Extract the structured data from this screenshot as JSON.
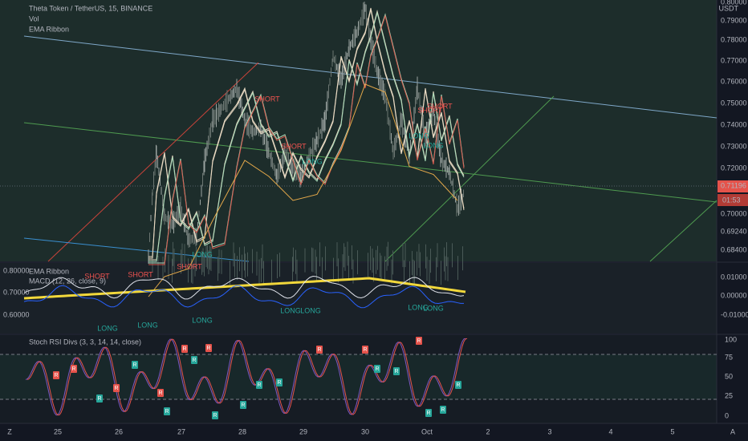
{
  "header": {
    "symbol": "Theta Token / TetherUS, 15, BINANCE",
    "indicators": [
      "Vol",
      "EMA Ribbon"
    ]
  },
  "price_axis": {
    "labels": [
      "0.80000",
      "0.79000",
      "0.78000",
      "0.77000",
      "0.76000",
      "0.75000",
      "0.74000",
      "0.73000",
      "0.72000",
      "0.70000",
      "0.69240",
      "0.68400"
    ],
    "currency": "USDT",
    "last_price": "0.71196",
    "countdown": "01:53"
  },
  "main_signals": [
    "SHORT",
    "SHORT",
    "LONG",
    "SHORT",
    "SHORT",
    "LONG",
    "LONG",
    "LONG"
  ],
  "macd_panel": {
    "labels": [
      "EMA Ribbon",
      "MACD (12, 26, close, 9)"
    ],
    "left_axis": [
      "0.80000",
      "0.70000",
      "0.60000"
    ],
    "right_axis": [
      "0.01000",
      "0.00000",
      "-0.01000"
    ],
    "signals": [
      "SHORT",
      "SHORT",
      "SHORT",
      "LONG",
      "LONG",
      "LONG",
      "LONG",
      "LONG",
      "LONG",
      "LONG"
    ]
  },
  "rsi_panel": {
    "label": "Stoch RSI Divs (3, 3, 14, 14, close)",
    "axis": [
      "100",
      "75",
      "50",
      "25",
      "0"
    ],
    "signals": [
      "R",
      "R",
      "R",
      "R",
      "R",
      "R",
      "R",
      "R",
      "R",
      "R",
      "R",
      "R",
      "R",
      "R",
      "R",
      "R",
      "R",
      "R",
      "R",
      "R",
      "R",
      "R"
    ]
  },
  "time_axis": [
    "25",
    "26",
    "27",
    "28",
    "29",
    "30",
    "Oct",
    "2",
    "3",
    "4",
    "5"
  ],
  "corner_buttons": [
    "Z",
    "A"
  ]
}
